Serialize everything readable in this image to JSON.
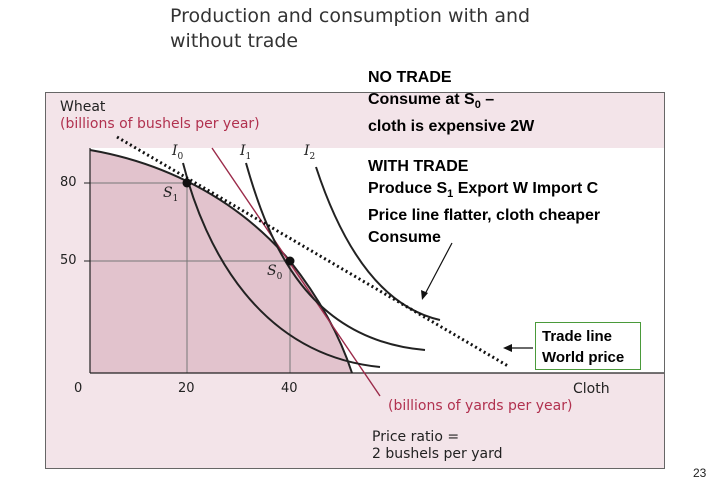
{
  "slide": {
    "title_line1": "Production and consumption with and",
    "title_line2": "without trade",
    "page_number": "23"
  },
  "figure": {
    "y_axis_title": "Wheat",
    "y_axis_units": "(billions of bushels per year)",
    "x_axis_title": "Cloth",
    "x_axis_units": "(billions of yards per year)",
    "origin_label": "0",
    "y_ticks": [
      "80",
      "50"
    ],
    "x_ticks": [
      "20",
      "40"
    ],
    "curve_labels": {
      "I0": {
        "base": "I",
        "sub": "0"
      },
      "I1": {
        "base": "I",
        "sub": "1"
      },
      "I2": {
        "base": "I",
        "sub": "2"
      }
    },
    "point_labels": {
      "S1": {
        "base": "S",
        "sub": "1"
      },
      "S0": {
        "base": "S",
        "sub": "0"
      }
    },
    "price_ratio_line1": "Price ratio =",
    "price_ratio_line2": "2 bushels per yard",
    "colors": {
      "panel": "#f3e4e9",
      "ppf_fill": "#e2c3cd",
      "price_line": "#9b2b4a",
      "text_accent": "#b1314f",
      "box_border": "#4a9a3a"
    }
  },
  "notes": {
    "no_trade_heading": "NO TRADE",
    "no_trade_line1_prefix": "Consume at S",
    "no_trade_line1_sub": "0",
    "no_trade_line1_suffix": " –",
    "no_trade_line2": "cloth is expensive 2W",
    "with_trade_heading": "WITH TRADE",
    "with_trade_line1_prefix": "Produce S",
    "with_trade_line1_sub": "1",
    "with_trade_line1_suffix": " Export W Import C",
    "with_trade_line2": "Price line flatter, cloth cheaper",
    "with_trade_line3": "Consume"
  },
  "trade_box": {
    "line1": "Trade line",
    "line2": "World price"
  }
}
